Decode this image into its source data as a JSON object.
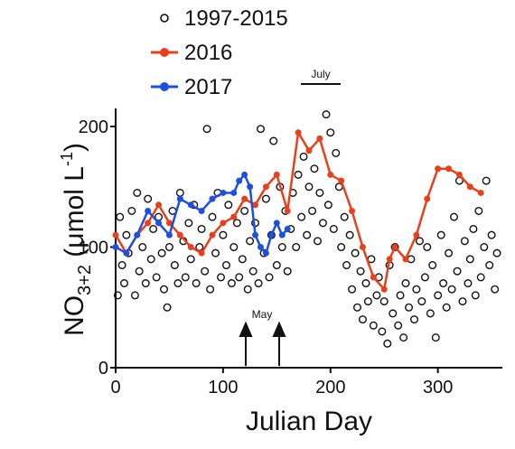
{
  "chart_data": {
    "type": "scatter",
    "xlabel": "Julian Day",
    "ylabel": [
      "NO",
      "3+2",
      " (μmol L",
      "-1",
      ")"
    ],
    "xlim": [
      0,
      360
    ],
    "ylim": [
      0,
      215
    ],
    "xticks": [
      0,
      100,
      200,
      300
    ],
    "yticks": [
      0,
      100,
      200
    ],
    "legend": "top-left",
    "annotations": [
      "July",
      "May"
    ],
    "series": [
      {
        "name": "1997-2015",
        "color": "#111111",
        "mode": "markers",
        "x": [
          2,
          4,
          6,
          8,
          10,
          12,
          15,
          18,
          20,
          22,
          25,
          28,
          30,
          33,
          35,
          38,
          40,
          43,
          45,
          48,
          50,
          53,
          55,
          58,
          60,
          63,
          65,
          68,
          70,
          73,
          75,
          78,
          80,
          83,
          85,
          88,
          90,
          93,
          95,
          98,
          100,
          103,
          105,
          108,
          110,
          113,
          115,
          118,
          120,
          123,
          125,
          128,
          130,
          133,
          135,
          138,
          140,
          143,
          145,
          147,
          150,
          153,
          155,
          158,
          160,
          163,
          165,
          168,
          170,
          173,
          175,
          178,
          180,
          183,
          185,
          188,
          190,
          193,
          196,
          198,
          200,
          203,
          205,
          208,
          210,
          213,
          215,
          218,
          220,
          223,
          225,
          228,
          230,
          233,
          235,
          238,
          240,
          243,
          245,
          248,
          250,
          253,
          255,
          258,
          260,
          263,
          265,
          268,
          270,
          273,
          275,
          278,
          280,
          283,
          285,
          288,
          290,
          293,
          295,
          298,
          300,
          303,
          305,
          308,
          310,
          313,
          315,
          318,
          320,
          323,
          325,
          328,
          330,
          333,
          335,
          338,
          340,
          343,
          345,
          348,
          350,
          353,
          355
        ],
        "values": [
          60,
          125,
          85,
          70,
          110,
          95,
          130,
          60,
          145,
          80,
          100,
          70,
          140,
          90,
          115,
          75,
          125,
          95,
          65,
          50,
          100,
          130,
          85,
          70,
          145,
          105,
          75,
          120,
          90,
          135,
          70,
          100,
          115,
          80,
          198,
          65,
          125,
          95,
          145,
          75,
          110,
          85,
          135,
          70,
          100,
          120,
          75,
          90,
          130,
          65,
          105,
          80,
          120,
          70,
          198,
          95,
          140,
          75,
          110,
          188,
          85,
          150,
          100,
          130,
          80,
          115,
          145,
          100,
          160,
          125,
          175,
          110,
          150,
          130,
          165,
          105,
          145,
          120,
          210,
          135,
          195,
          115,
          178,
          150,
          100,
          125,
          85,
          110,
          65,
          95,
          50,
          80,
          40,
          70,
          55,
          90,
          35,
          60,
          75,
          30,
          55,
          20,
          85,
          45,
          100,
          35,
          60,
          25,
          70,
          50,
          90,
          40,
          65,
          105,
          55,
          75,
          100,
          45,
          85,
          25,
          60,
          110,
          70,
          50,
          95,
          65,
          125,
          80,
          155,
          55,
          105,
          70,
          90,
          115,
          60,
          130,
          75,
          100,
          155,
          85,
          110,
          65,
          95
        ]
      },
      {
        "name": "2016",
        "color": "#e8401c",
        "mode": "lines+markers",
        "x": [
          0,
          10,
          20,
          30,
          40,
          50,
          60,
          70,
          80,
          90,
          100,
          110,
          120,
          130,
          140,
          150,
          160,
          170,
          180,
          190,
          200,
          210,
          220,
          230,
          240,
          250,
          255,
          260,
          270,
          280,
          290,
          300,
          310,
          320,
          330,
          340
        ],
        "values": [
          110,
          95,
          110,
          120,
          135,
          120,
          110,
          100,
          95,
          110,
          120,
          125,
          140,
          135,
          150,
          160,
          130,
          195,
          180,
          190,
          160,
          155,
          130,
          100,
          75,
          65,
          90,
          100,
          90,
          110,
          140,
          165,
          165,
          160,
          150,
          145
        ]
      },
      {
        "name": "2017",
        "color": "#1f4fe0",
        "mode": "lines+markers",
        "x": [
          0,
          10,
          20,
          30,
          40,
          50,
          60,
          70,
          80,
          90,
          100,
          110,
          115,
          120,
          125,
          130,
          135,
          140,
          145,
          150,
          155,
          160
        ],
        "values": [
          100,
          95,
          110,
          130,
          120,
          110,
          140,
          135,
          130,
          140,
          145,
          145,
          155,
          160,
          150,
          110,
          100,
          95,
          110,
          120,
          110,
          115
        ]
      }
    ]
  }
}
